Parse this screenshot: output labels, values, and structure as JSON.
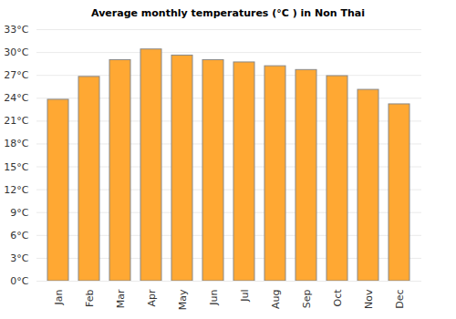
{
  "chart_data": {
    "type": "bar",
    "title": "Average monthly temperatures (°C ) in Non Thai",
    "categories": [
      "Jan",
      "Feb",
      "Mar",
      "Apr",
      "May",
      "Jun",
      "Jul",
      "Aug",
      "Sep",
      "Oct",
      "Nov",
      "Dec"
    ],
    "values": [
      23.8,
      26.8,
      29.0,
      30.4,
      29.6,
      29.0,
      28.7,
      28.2,
      27.7,
      26.9,
      25.1,
      23.2
    ],
    "color": "#ffa833",
    "ylim": [
      0,
      33
    ],
    "yticks": [
      {
        "value": 0,
        "label": "0°C"
      },
      {
        "value": 3,
        "label": "3°C"
      },
      {
        "value": 6,
        "label": "6°C"
      },
      {
        "value": 9,
        "label": "9°C"
      },
      {
        "value": 12,
        "label": "12°C"
      },
      {
        "value": 15,
        "label": "15°C"
      },
      {
        "value": 18,
        "label": "18°C"
      },
      {
        "value": 21,
        "label": "21°C"
      },
      {
        "value": 24,
        "label": "24°C"
      },
      {
        "value": 27,
        "label": "27°C"
      },
      {
        "value": 30,
        "label": "30°C"
      },
      {
        "value": 33,
        "label": "33°C"
      }
    ],
    "grid": true
  }
}
